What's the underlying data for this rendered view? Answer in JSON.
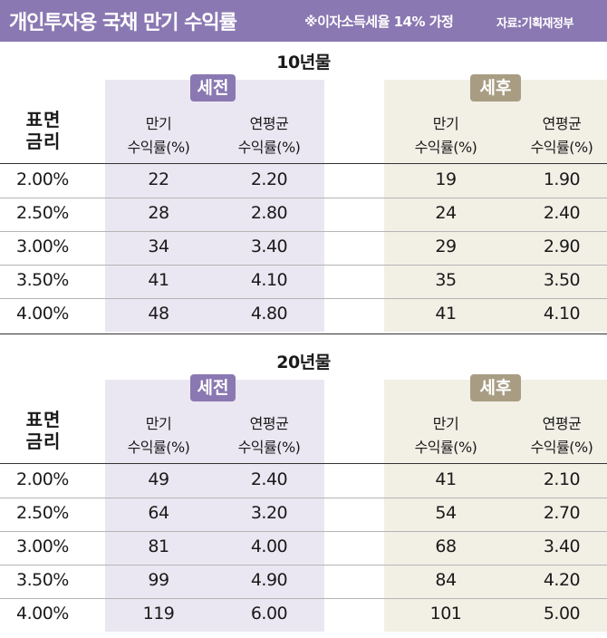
{
  "header": {
    "title": "개인투자용 국채 만기 수익률",
    "note": "※이자소득세율 14% 가정",
    "source": "자료:기획재정부"
  },
  "chart_data": {
    "type": "table",
    "row_header": "표면 금리",
    "groups": [
      "세전",
      "세후"
    ],
    "columns": [
      "만기 수익률(%)",
      "연평균 수익률(%)"
    ],
    "tables": [
      {
        "title": "10년물",
        "rows": [
          {
            "rate": "2.00%",
            "pre_maturity": "22",
            "pre_annual": "2.20",
            "post_maturity": "19",
            "post_annual": "1.90"
          },
          {
            "rate": "2.50%",
            "pre_maturity": "28",
            "pre_annual": "2.80",
            "post_maturity": "24",
            "post_annual": "2.40"
          },
          {
            "rate": "3.00%",
            "pre_maturity": "34",
            "pre_annual": "3.40",
            "post_maturity": "29",
            "post_annual": "2.90"
          },
          {
            "rate": "3.50%",
            "pre_maturity": "41",
            "pre_annual": "4.10",
            "post_maturity": "35",
            "post_annual": "3.50"
          },
          {
            "rate": "4.00%",
            "pre_maturity": "48",
            "pre_annual": "4.80",
            "post_maturity": "41",
            "post_annual": "4.10"
          }
        ]
      },
      {
        "title": "20년물",
        "rows": [
          {
            "rate": "2.00%",
            "pre_maturity": "49",
            "pre_annual": "2.40",
            "post_maturity": "41",
            "post_annual": "2.10"
          },
          {
            "rate": "2.50%",
            "pre_maturity": "64",
            "pre_annual": "3.20",
            "post_maturity": "54",
            "post_annual": "2.70"
          },
          {
            "rate": "3.00%",
            "pre_maturity": "81",
            "pre_annual": "4.00",
            "post_maturity": "68",
            "post_annual": "3.40"
          },
          {
            "rate": "3.50%",
            "pre_maturity": "99",
            "pre_annual": "4.90",
            "post_maturity": "84",
            "post_annual": "4.20"
          },
          {
            "rate": "4.00%",
            "pre_maturity": "119",
            "pre_annual": "6.00",
            "post_maturity": "101",
            "post_annual": "5.00"
          }
        ]
      }
    ]
  }
}
